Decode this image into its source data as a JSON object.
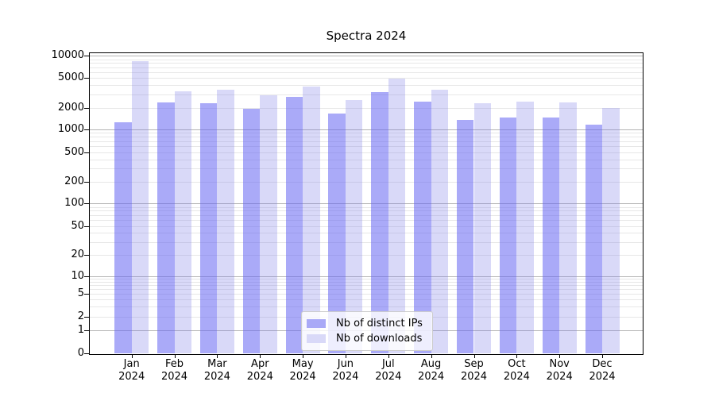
{
  "title": "Spectra 2024",
  "chart_data": {
    "type": "bar",
    "title": "Spectra 2024",
    "categories": [
      "Jan",
      "Feb",
      "Mar",
      "Apr",
      "May",
      "Jun",
      "Jul",
      "Aug",
      "Sep",
      "Oct",
      "Nov",
      "Dec"
    ],
    "category_year": "2024",
    "series": [
      {
        "name": "Nb of distinct IPs",
        "color": "#a9a9f7",
        "fill": "rgba(100,100,242,0.55)",
        "values": [
          1250,
          2370,
          2290,
          1940,
          2820,
          1670,
          3210,
          2390,
          1370,
          1450,
          1450,
          1160
        ]
      },
      {
        "name": "Nb of downloads",
        "color": "#d9d9f8",
        "fill": "rgba(128,128,232,0.30)",
        "values": [
          8500,
          3300,
          3460,
          2940,
          3800,
          2550,
          4880,
          3500,
          2310,
          2390,
          2360,
          2000
        ]
      }
    ],
    "yscale": "symlog",
    "yticks": [
      10000,
      5000,
      2000,
      1000,
      500,
      200,
      100,
      50,
      20,
      10,
      5,
      2,
      1,
      0
    ],
    "ylim": [
      0,
      11000
    ],
    "xlabel": "",
    "ylabel": "",
    "grid": true,
    "legend_position": "lower center"
  }
}
